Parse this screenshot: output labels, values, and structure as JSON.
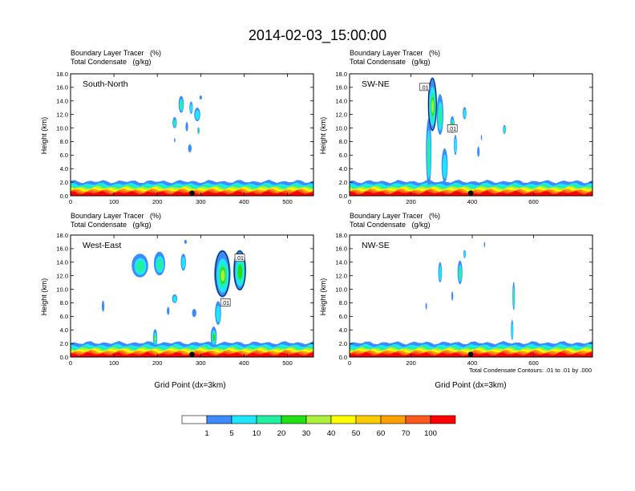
{
  "figure_title": "2014-02-03_15:00:00",
  "chart_data": [
    {
      "type": "heatmap",
      "panel_label": "South-North",
      "field_title": "Boundary Layer Tracer   (%)",
      "overlay_title": "Total Condensate   (g/kg)",
      "ylabel": "Height (km)",
      "xlabel": "",
      "xlim": [
        0,
        560
      ],
      "ylim": [
        0,
        18
      ],
      "xticks": [
        "0",
        "100",
        "200",
        "300",
        "400",
        "500"
      ],
      "xtick_values": [
        0,
        100,
        200,
        300,
        400,
        500
      ],
      "yticks": [
        "0.0",
        "2.0",
        "4.0",
        "6.0",
        "8.0",
        "10.0",
        "12.0",
        "14.0",
        "16.0",
        "18.0"
      ],
      "marker_x": 280,
      "contour_labels": [],
      "plumes": [
        {
          "x": 240,
          "y": 10.8,
          "w": 10,
          "h": 1.6,
          "level": 20
        },
        {
          "x": 255,
          "y": 13.5,
          "w": 12,
          "h": 2.5,
          "level": 20
        },
        {
          "x": 278,
          "y": 13.0,
          "w": 8,
          "h": 1.8,
          "level": 10
        },
        {
          "x": 268,
          "y": 10.2,
          "w": 6,
          "h": 1.4,
          "level": 5
        },
        {
          "x": 292,
          "y": 12.0,
          "w": 14,
          "h": 2.0,
          "level": 10
        },
        {
          "x": 275,
          "y": 7.0,
          "w": 8,
          "h": 1.2,
          "level": 5
        },
        {
          "x": 295,
          "y": 9.6,
          "w": 5,
          "h": 1.0,
          "level": 30
        },
        {
          "x": 240,
          "y": 8.2,
          "w": 3,
          "h": 0.6,
          "level": 5
        },
        {
          "x": 300,
          "y": 14.5,
          "w": 6,
          "h": 0.6,
          "level": 5
        }
      ]
    },
    {
      "type": "heatmap",
      "panel_label": "SW-NE",
      "field_title": "Boundary Layer Tracer   (%)",
      "overlay_title": "Total Condensate   (g/kg)",
      "ylabel": "Height (km)",
      "xlabel": "",
      "xlim": [
        0,
        792
      ],
      "ylim": [
        0,
        18
      ],
      "xticks": [
        "0",
        "200",
        "400",
        "600"
      ],
      "xtick_values": [
        0,
        200,
        400,
        600
      ],
      "yticks": [
        "0.0",
        "2.0",
        "4.0",
        "6.0",
        "8.0",
        "10.0",
        "12.0",
        "14.0",
        "16.0",
        "18.0"
      ],
      "marker_x": 395,
      "contour_labels": [
        {
          "text": ".01",
          "x": 245,
          "y": 16.0
        },
        {
          "text": ".01",
          "x": 335,
          "y": 9.9
        }
      ],
      "plumes": [
        {
          "x": 270,
          "y": 13.5,
          "w": 30,
          "h": 8.0,
          "level": 40
        },
        {
          "x": 258,
          "y": 6.5,
          "w": 18,
          "h": 10.0,
          "level": 20
        },
        {
          "x": 295,
          "y": 12.0,
          "w": 22,
          "h": 6.0,
          "level": 20
        },
        {
          "x": 310,
          "y": 4.5,
          "w": 20,
          "h": 5.0,
          "level": 10
        },
        {
          "x": 335,
          "y": 10.5,
          "w": 14,
          "h": 2.5,
          "level": 30
        },
        {
          "x": 375,
          "y": 12.2,
          "w": 12,
          "h": 1.8,
          "level": 10
        },
        {
          "x": 345,
          "y": 7.5,
          "w": 10,
          "h": 3.0,
          "level": 10
        },
        {
          "x": 420,
          "y": 6.5,
          "w": 8,
          "h": 1.5,
          "level": 5
        },
        {
          "x": 505,
          "y": 9.8,
          "w": 10,
          "h": 1.3,
          "level": 10
        },
        {
          "x": 430,
          "y": 8.6,
          "w": 4,
          "h": 0.8,
          "level": 5
        }
      ]
    },
    {
      "type": "heatmap",
      "panel_label": "West-East",
      "field_title": "Boundary Layer Tracer   (%)",
      "overlay_title": "Total Condensate   (g/kg)",
      "ylabel": "Height (km)",
      "xlabel": "Grid Point (dx=3km)",
      "xlim": [
        0,
        560
      ],
      "ylim": [
        0,
        18
      ],
      "xticks": [
        "0",
        "100",
        "200",
        "300",
        "400",
        "500"
      ],
      "xtick_values": [
        0,
        100,
        200,
        300,
        400,
        500
      ],
      "yticks": [
        "0.0",
        "2.0",
        "4.0",
        "6.0",
        "8.0",
        "10.0",
        "12.0",
        "14.0",
        "16.0",
        "18.0"
      ],
      "marker_x": 280,
      "contour_labels": [
        {
          "text": ".01",
          "x": 390,
          "y": 14.6
        },
        {
          "text": ".01",
          "x": 357,
          "y": 8.0
        }
      ],
      "plumes": [
        {
          "x": 160,
          "y": 13.5,
          "w": 38,
          "h": 3.5,
          "level": 20
        },
        {
          "x": 205,
          "y": 13.8,
          "w": 26,
          "h": 3.5,
          "level": 20
        },
        {
          "x": 260,
          "y": 14.0,
          "w": 12,
          "h": 2.5,
          "level": 10
        },
        {
          "x": 350,
          "y": 12.3,
          "w": 38,
          "h": 7.0,
          "level": 40
        },
        {
          "x": 390,
          "y": 12.8,
          "w": 30,
          "h": 6.0,
          "level": 30
        },
        {
          "x": 340,
          "y": 6.5,
          "w": 14,
          "h": 3.5,
          "level": 10
        },
        {
          "x": 330,
          "y": 3.0,
          "w": 14,
          "h": 3.0,
          "level": 30
        },
        {
          "x": 285,
          "y": 6.5,
          "w": 10,
          "h": 1.2,
          "level": 5
        },
        {
          "x": 240,
          "y": 8.6,
          "w": 12,
          "h": 1.3,
          "level": 10
        },
        {
          "x": 225,
          "y": 6.8,
          "w": 6,
          "h": 1.2,
          "level": 5
        },
        {
          "x": 75,
          "y": 7.5,
          "w": 6,
          "h": 1.6,
          "level": 5
        },
        {
          "x": 195,
          "y": 2.8,
          "w": 10,
          "h": 2.6,
          "level": 40
        },
        {
          "x": 265,
          "y": 17.0,
          "w": 6,
          "h": 0.6,
          "level": 5
        }
      ]
    },
    {
      "type": "heatmap",
      "panel_label": "NW-SE",
      "field_title": "Boundary Layer Tracer   (%)",
      "overlay_title": "Total Condensate   (g/kg)",
      "ylabel": "Height (km)",
      "xlabel": "Grid Point (dx=3km)",
      "xlim": [
        0,
        792
      ],
      "ylim": [
        0,
        18
      ],
      "xticks": [
        "0",
        "200",
        "400",
        "600"
      ],
      "xtick_values": [
        0,
        200,
        400,
        600
      ],
      "yticks": [
        "0.0",
        "2.0",
        "4.0",
        "6.0",
        "8.0",
        "10.0",
        "12.0",
        "14.0",
        "16.0",
        "18.0"
      ],
      "marker_x": 395,
      "contour_labels": [],
      "footnote": "Total Condensate Contours: .01 to .01 by .000",
      "plumes": [
        {
          "x": 295,
          "y": 12.5,
          "w": 12,
          "h": 3.0,
          "level": 10
        },
        {
          "x": 360,
          "y": 12.5,
          "w": 16,
          "h": 3.5,
          "level": 20
        },
        {
          "x": 375,
          "y": 15.2,
          "w": 8,
          "h": 1.2,
          "level": 10
        },
        {
          "x": 335,
          "y": 9.0,
          "w": 6,
          "h": 1.4,
          "level": 5
        },
        {
          "x": 250,
          "y": 7.5,
          "w": 5,
          "h": 1.0,
          "level": 5
        },
        {
          "x": 535,
          "y": 9.0,
          "w": 8,
          "h": 4.2,
          "level": 20
        },
        {
          "x": 530,
          "y": 4.0,
          "w": 8,
          "h": 3.0,
          "level": 10
        },
        {
          "x": 440,
          "y": 16.6,
          "w": 4,
          "h": 0.8,
          "level": 5
        }
      ]
    }
  ],
  "colorbar": {
    "labels": [
      "1",
      "5",
      "10",
      "20",
      "30",
      "40",
      "50",
      "60",
      "70",
      "100"
    ],
    "colors": [
      "#ffffff",
      "#3d8cff",
      "#1ee6ff",
      "#22f0a0",
      "#22e014",
      "#aaf03c",
      "#ffff00",
      "#ffcc00",
      "#ffa000",
      "#ff5a1e",
      "#ff0000"
    ]
  }
}
